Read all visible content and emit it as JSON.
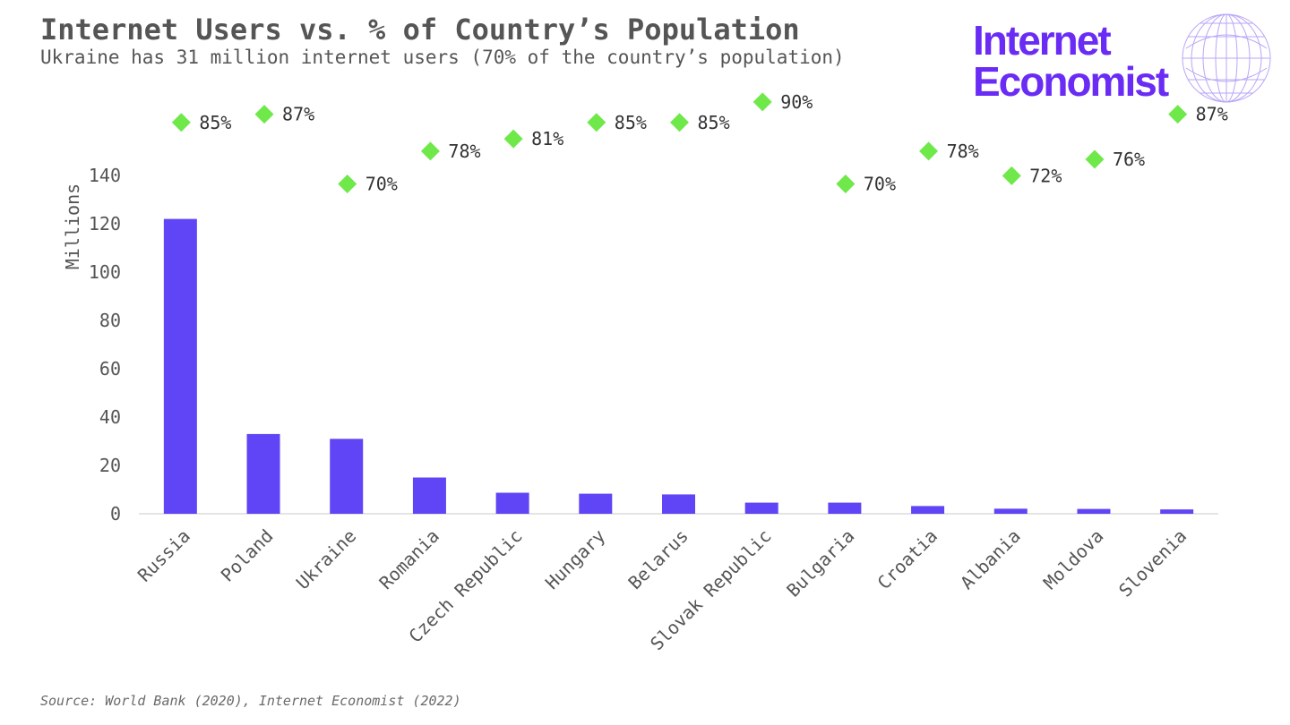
{
  "header": {
    "title": "Internet Users vs. % of Country’s Population",
    "subtitle": "Ukraine has 31 million internet users (70% of the country’s population)"
  },
  "logo": {
    "line1": "Internet",
    "line2": "Economist",
    "color": "#6a2cf5",
    "icon": "globe-icon"
  },
  "footer": {
    "source": "Source: World Bank (2020), Internet Economist (2022)"
  },
  "chart_data": {
    "type": "bar",
    "categories": [
      "Russia",
      "Poland",
      "Ukraine",
      "Romania",
      "Czech Republic",
      "Hungary",
      "Belarus",
      "Slovak Republic",
      "Bulgaria",
      "Croatia",
      "Albania",
      "Moldova",
      "Slovenia"
    ],
    "series": [
      {
        "type": "bar",
        "values": [
          122,
          33,
          31,
          15,
          8.7,
          8.3,
          8,
          4.6,
          4.6,
          3.2,
          2.1,
          2.0,
          1.8
        ],
        "color": "#5f45f5"
      },
      {
        "type": "scatter",
        "marker": "diamond",
        "values": [
          85,
          87,
          70,
          78,
          81,
          85,
          85,
          90,
          70,
          78,
          72,
          76,
          87
        ],
        "labels": [
          "85%",
          "87%",
          "70%",
          "78%",
          "81%",
          "85%",
          "85%",
          "90%",
          "70%",
          "78%",
          "72%",
          "76%",
          "87%"
        ],
        "color": "#6fe84a"
      }
    ],
    "title": "Internet Users vs. % of Country’s Population",
    "xlabel": "",
    "ylabel": "Millions",
    "ylim": [
      0,
      140
    ],
    "yticks": [
      "0",
      "20",
      "40",
      "60",
      "80",
      "100",
      "120",
      "140"
    ],
    "grid": false,
    "legend": "none"
  }
}
